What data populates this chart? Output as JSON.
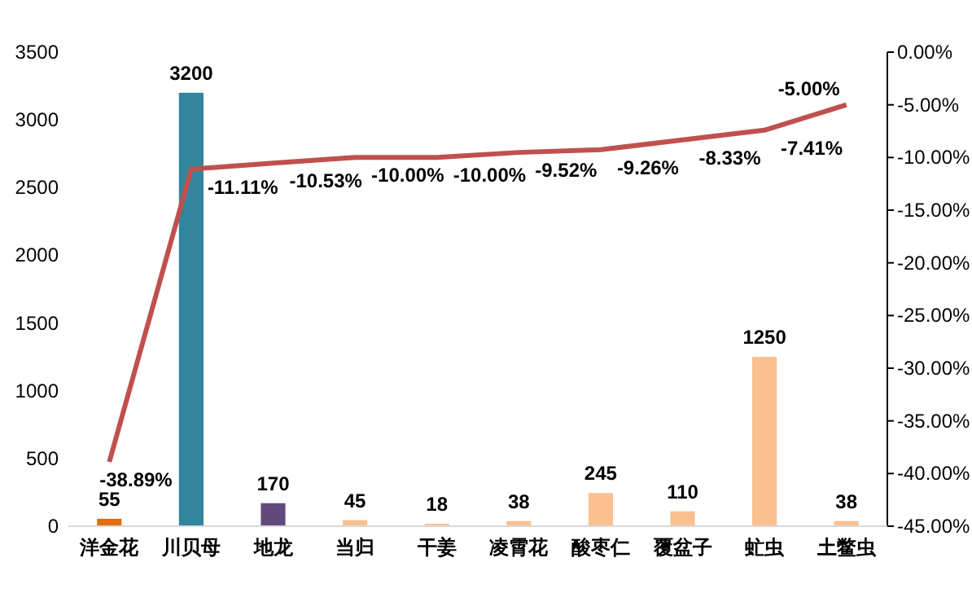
{
  "chart_data": {
    "type": "bar",
    "categories": [
      "洋金花",
      "川贝母",
      "地龙",
      "当归",
      "干姜",
      "凌霄花",
      "酸枣仁",
      "覆盆子",
      "虻虫",
      "土鳖虫"
    ],
    "series": [
      {
        "colors": [
          "#e46c0a",
          "#31859c",
          "#604a7b",
          "#fac090",
          "#fac090",
          "#fac090",
          "#fac090",
          "#fac090",
          "#fac090",
          "#fac090"
        ],
        "values": [
          55,
          3200,
          170,
          45,
          18,
          38,
          245,
          110,
          1250,
          38
        ]
      },
      {
        "type": "line",
        "axis": "y2",
        "color": "#c0504d",
        "values": [
          -38.89,
          -11.11,
          -10.53,
          -10.0,
          -10.0,
          -9.52,
          -9.26,
          -8.33,
          -7.41,
          -5.0
        ],
        "value_labels": [
          "-38.89%",
          "-11.11%",
          "-10.53%",
          "-10.00%",
          "-10.00%",
          "-9.52%",
          "-9.26%",
          "-8.33%",
          "-7.41%",
          "-5.00%"
        ]
      }
    ],
    "data_labels": true,
    "ylim": [
      0,
      3500
    ],
    "yticks": [
      0,
      500,
      1000,
      1500,
      2000,
      2500,
      3000,
      3500
    ],
    "y2lim": [
      -45,
      0
    ],
    "y2ticks": [
      {
        "value": -45,
        "label": "-45.00%"
      },
      {
        "value": -40,
        "label": "-40.00%"
      },
      {
        "value": -35,
        "label": "-35.00%"
      },
      {
        "value": -30,
        "label": "-30.00%"
      },
      {
        "value": -25,
        "label": "-25.00%"
      },
      {
        "value": -20,
        "label": "-20.00%"
      },
      {
        "value": -15,
        "label": "-15.00%"
      },
      {
        "value": -10,
        "label": "-10.00%"
      },
      {
        "value": -5,
        "label": "-5.00%"
      },
      {
        "value": 0,
        "label": "0.00%"
      }
    ],
    "grid": false
  }
}
